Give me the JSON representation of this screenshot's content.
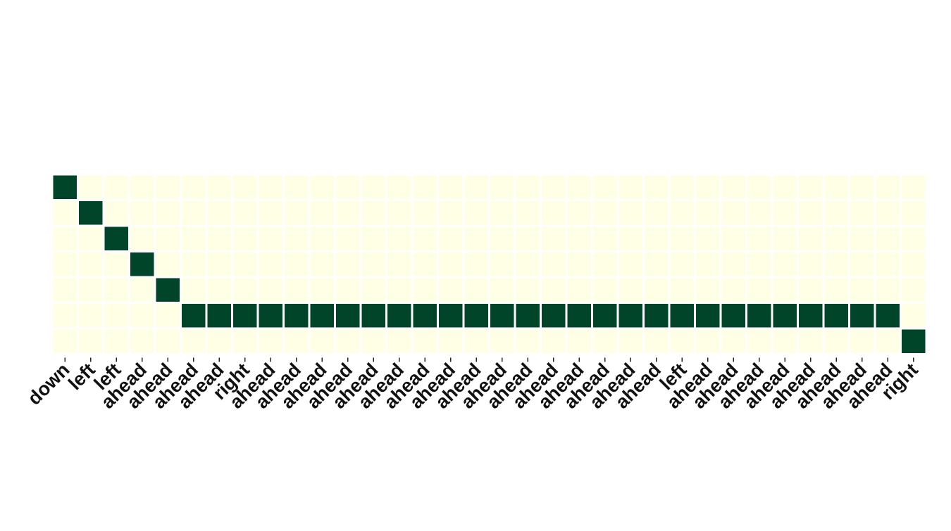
{
  "chart_data": {
    "type": "heatmap",
    "title": "",
    "xlabel": "",
    "ylabel": "",
    "x_tick_labels": [
      "down",
      "left",
      "left",
      "ahead",
      "ahead",
      "ahead",
      "ahead",
      "right",
      "ahead",
      "ahead",
      "ahead",
      "ahead",
      "ahead",
      "ahead",
      "ahead",
      "ahead",
      "ahead",
      "ahead",
      "ahead",
      "ahead",
      "ahead",
      "ahead",
      "ahead",
      "ahead",
      "left",
      "ahead",
      "ahead",
      "ahead",
      "ahead",
      "ahead",
      "ahead",
      "ahead",
      "ahead",
      "right"
    ],
    "y_tick_labels": [],
    "colormap": {
      "low": "#ffffe5",
      "high": "#004529"
    },
    "cell_border_color": "#ffffff",
    "grid": false,
    "active_row_by_column": [
      0,
      1,
      2,
      3,
      4,
      5,
      5,
      5,
      5,
      5,
      5,
      5,
      5,
      5,
      5,
      5,
      5,
      5,
      5,
      5,
      5,
      5,
      5,
      5,
      5,
      5,
      5,
      5,
      5,
      5,
      5,
      5,
      5,
      6
    ],
    "values": [
      [
        1,
        0,
        0,
        0,
        0,
        0,
        0,
        0,
        0,
        0,
        0,
        0,
        0,
        0,
        0,
        0,
        0,
        0,
        0,
        0,
        0,
        0,
        0,
        0,
        0,
        0,
        0,
        0,
        0,
        0,
        0,
        0,
        0,
        0
      ],
      [
        0,
        1,
        0,
        0,
        0,
        0,
        0,
        0,
        0,
        0,
        0,
        0,
        0,
        0,
        0,
        0,
        0,
        0,
        0,
        0,
        0,
        0,
        0,
        0,
        0,
        0,
        0,
        0,
        0,
        0,
        0,
        0,
        0,
        0
      ],
      [
        0,
        0,
        1,
        0,
        0,
        0,
        0,
        0,
        0,
        0,
        0,
        0,
        0,
        0,
        0,
        0,
        0,
        0,
        0,
        0,
        0,
        0,
        0,
        0,
        0,
        0,
        0,
        0,
        0,
        0,
        0,
        0,
        0,
        0
      ],
      [
        0,
        0,
        0,
        1,
        0,
        0,
        0,
        0,
        0,
        0,
        0,
        0,
        0,
        0,
        0,
        0,
        0,
        0,
        0,
        0,
        0,
        0,
        0,
        0,
        0,
        0,
        0,
        0,
        0,
        0,
        0,
        0,
        0,
        0
      ],
      [
        0,
        0,
        0,
        0,
        1,
        0,
        0,
        0,
        0,
        0,
        0,
        0,
        0,
        0,
        0,
        0,
        0,
        0,
        0,
        0,
        0,
        0,
        0,
        0,
        0,
        0,
        0,
        0,
        0,
        0,
        0,
        0,
        0,
        0
      ],
      [
        0,
        0,
        0,
        0,
        0,
        1,
        1,
        1,
        1,
        1,
        1,
        1,
        1,
        1,
        1,
        1,
        1,
        1,
        1,
        1,
        1,
        1,
        1,
        1,
        1,
        1,
        1,
        1,
        1,
        1,
        1,
        1,
        1,
        0
      ],
      [
        0,
        0,
        0,
        0,
        0,
        0,
        0,
        0,
        0,
        0,
        0,
        0,
        0,
        0,
        0,
        0,
        0,
        0,
        0,
        0,
        0,
        0,
        0,
        0,
        0,
        0,
        0,
        0,
        0,
        0,
        0,
        0,
        0,
        1
      ]
    ]
  }
}
